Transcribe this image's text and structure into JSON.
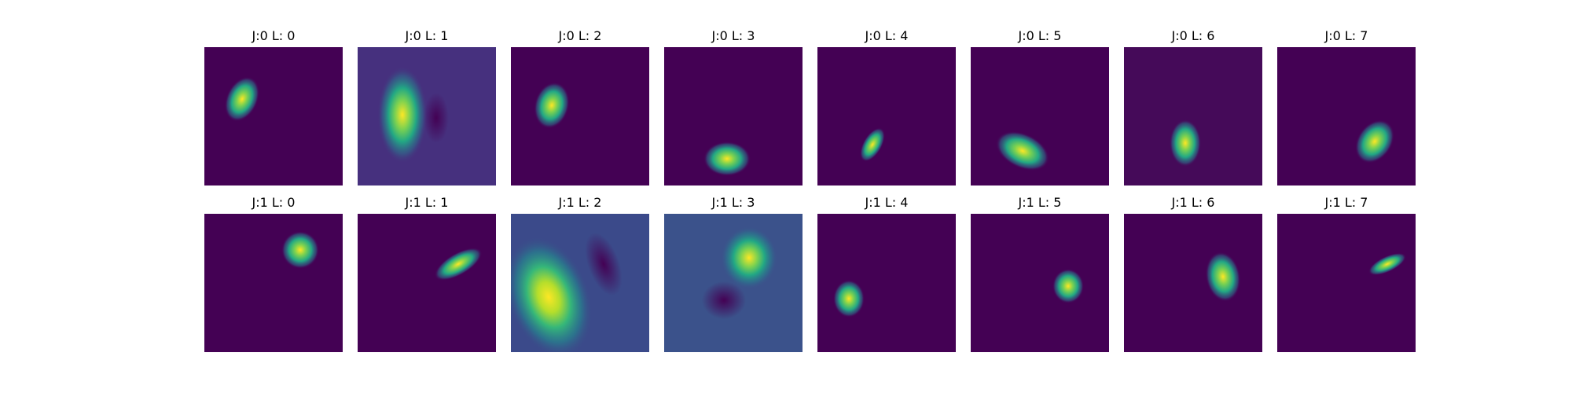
{
  "colormap": {
    "name": "viridis",
    "low": "#440154",
    "mid": "#21918c",
    "high": "#fde725"
  },
  "grid": {
    "rows": 2,
    "cols": 8
  },
  "panels": [
    {
      "title": "J:0 L: 0",
      "background": "#440154"
    },
    {
      "title": "J:0 L: 1",
      "background": "#46307e"
    },
    {
      "title": "J:0 L: 2",
      "background": "#440154"
    },
    {
      "title": "J:0 L: 3",
      "background": "#440154"
    },
    {
      "title": "J:0 L: 4",
      "background": "#440154"
    },
    {
      "title": "J:0 L: 5",
      "background": "#440154"
    },
    {
      "title": "J:0 L: 6",
      "background": "#450a59"
    },
    {
      "title": "J:0 L: 7",
      "background": "#440154"
    },
    {
      "title": "J:1 L: 0",
      "background": "#440154"
    },
    {
      "title": "J:1 L: 1",
      "background": "#440154"
    },
    {
      "title": "J:1 L: 2",
      "background": "#3b4a8a"
    },
    {
      "title": "J:1 L: 3",
      "background": "#3b528b"
    },
    {
      "title": "J:1 L: 4",
      "background": "#440154"
    },
    {
      "title": "J:1 L: 5",
      "background": "#440154"
    },
    {
      "title": "J:1 L: 6",
      "background": "#440154"
    },
    {
      "title": "J:1 L: 7",
      "background": "#440154"
    }
  ]
}
